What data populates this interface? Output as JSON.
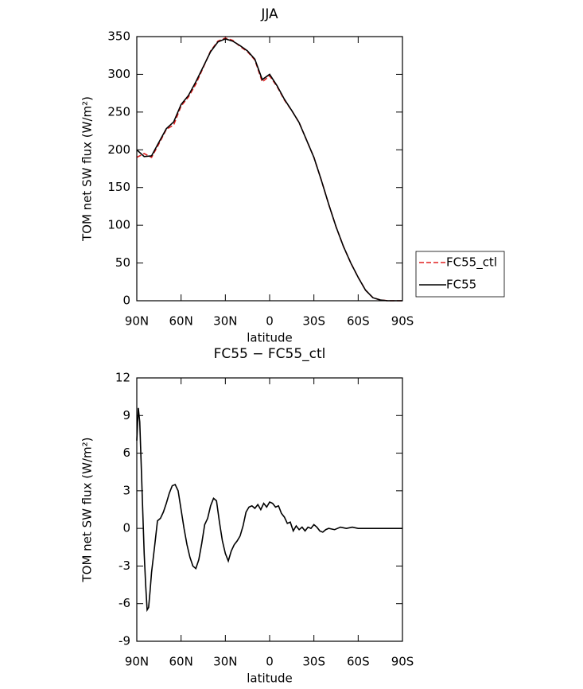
{
  "chart_data": [
    {
      "type": "line",
      "title": "JJA",
      "x_label": "latitude",
      "y_label": "TOM net SW flux (W/m²)",
      "x": [
        90,
        85,
        80,
        75,
        70,
        65,
        60,
        55,
        50,
        45,
        40,
        35,
        30,
        25,
        20,
        15,
        10,
        5,
        0,
        -5,
        -10,
        -15,
        -20,
        -25,
        -30,
        -35,
        -40,
        -45,
        -50,
        -55,
        -60,
        -65,
        -70,
        -75,
        -80,
        -85,
        -90
      ],
      "series": [
        {
          "name": "FC55_ctl",
          "color": "#e02020",
          "dash": true,
          "values": [
            190,
            195,
            190,
            208,
            227,
            233,
            258,
            270,
            287,
            309,
            331,
            344,
            348,
            345,
            337,
            330,
            319,
            290,
            298,
            284,
            266,
            252,
            236,
            213,
            190,
            160,
            128,
            98,
            72,
            50,
            31,
            14,
            4,
            1,
            0,
            0,
            0
          ]
        },
        {
          "name": "FC55",
          "color": "#000000",
          "dash": false,
          "values": [
            200,
            191,
            192,
            210,
            228,
            237,
            260,
            272,
            290,
            310,
            330,
            343,
            347,
            344,
            338,
            331,
            320,
            293,
            300,
            285,
            267,
            252,
            236,
            213,
            190,
            160,
            128,
            98,
            72,
            50,
            31,
            14,
            4,
            1,
            0,
            0,
            0
          ]
        }
      ],
      "xlim": [
        90,
        -90
      ],
      "xticks": [
        {
          "value": 90,
          "label": "90N"
        },
        {
          "value": 60,
          "label": "60N"
        },
        {
          "value": 30,
          "label": "30N"
        },
        0,
        {
          "value": -30,
          "label": "30S"
        },
        {
          "value": -60,
          "label": "60S"
        },
        {
          "value": -90,
          "label": "90S"
        }
      ],
      "ylim": [
        0,
        350
      ],
      "yticks": [
        0,
        50,
        100,
        150,
        200,
        250,
        300,
        350
      ],
      "legend": "right"
    },
    {
      "type": "line",
      "title": "FC55 − FC55_ctl",
      "x_label": "latitude",
      "y_label": "TOM net SW flux (W/m²)",
      "x": [
        90,
        89,
        88,
        87,
        86,
        85,
        84,
        83,
        82,
        81,
        80,
        78,
        76,
        74,
        72,
        70,
        68,
        66,
        64,
        62,
        60,
        58,
        56,
        54,
        52,
        50,
        48,
        46,
        44,
        42,
        40,
        38,
        36,
        34,
        32,
        30,
        28,
        26,
        24,
        22,
        20,
        18,
        16,
        14,
        12,
        10,
        8,
        6,
        4,
        2,
        0,
        -2,
        -4,
        -6,
        -8,
        -10,
        -12,
        -14,
        -16,
        -18,
        -20,
        -22,
        -24,
        -26,
        -28,
        -30,
        -32,
        -34,
        -36,
        -38,
        -40,
        -44,
        -48,
        -52,
        -56,
        -60,
        -70,
        -80,
        -90
      ],
      "series": [
        {
          "name": "FC55",
          "color": "#000000",
          "dash": false,
          "values": [
            7,
            9.6,
            8.5,
            5,
            1.5,
            -2,
            -4.5,
            -6.5,
            -6.3,
            -5,
            -3.5,
            -1.5,
            0.6,
            0.8,
            1.3,
            2,
            2.8,
            3.4,
            3.5,
            3,
            1.5,
            0,
            -1.3,
            -2.3,
            -3,
            -3.2,
            -2.5,
            -1.2,
            0.3,
            0.8,
            1.8,
            2.4,
            2.2,
            0.5,
            -1,
            -2,
            -2.6,
            -1.8,
            -1.3,
            -1,
            -0.6,
            0.2,
            1.3,
            1.7,
            1.8,
            1.6,
            1.9,
            1.5,
            2,
            1.7,
            2.1,
            2,
            1.7,
            1.8,
            1.2,
            0.9,
            0.4,
            0.5,
            -0.2,
            0.2,
            -0.1,
            0.1,
            -0.2,
            0.1,
            0,
            0.3,
            0.1,
            -0.2,
            -0.3,
            -0.1,
            0,
            -0.1,
            0.1,
            0,
            0.1,
            0,
            0,
            0,
            0
          ]
        }
      ],
      "xlim": [
        90,
        -90
      ],
      "xticks": [
        {
          "value": 90,
          "label": "90N"
        },
        {
          "value": 60,
          "label": "60N"
        },
        {
          "value": 30,
          "label": "30N"
        },
        0,
        {
          "value": -30,
          "label": "30S"
        },
        {
          "value": -60,
          "label": "60S"
        },
        {
          "value": -90,
          "label": "90S"
        }
      ],
      "ylim": [
        -9,
        12
      ],
      "yticks": [
        -9,
        -6,
        -3,
        0,
        3,
        6,
        9,
        12
      ]
    }
  ]
}
